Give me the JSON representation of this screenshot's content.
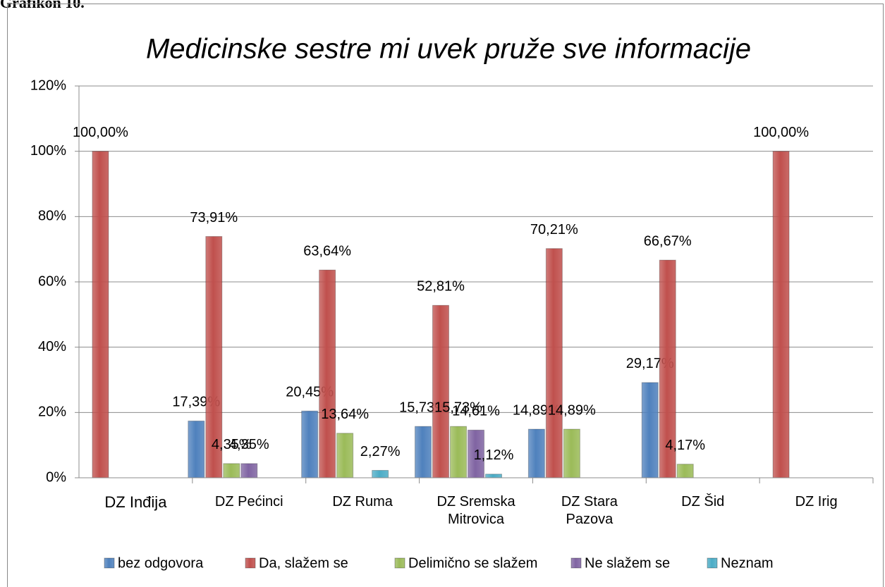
{
  "caption": "Grafikon 10.",
  "chart_data": {
    "type": "bar",
    "title": "Medicinske sestre mi uvek pruže sve informacije",
    "categories": [
      "DZ Inđija",
      "DZ Pećinci",
      "DZ Ruma",
      "DZ Sremska Mitrovica",
      "DZ Stara Pazova",
      "DZ Šid",
      "DZ Irig"
    ],
    "series": [
      {
        "name": "bez odgovora",
        "color": "#4f81bd",
        "values": [
          null,
          17.39,
          20.45,
          15.73,
          14.89,
          29.17,
          null
        ],
        "value_labels": [
          null,
          "17,39%",
          "20,45%",
          "15,73%",
          "14,89%",
          "29,17%",
          null
        ]
      },
      {
        "name": "Da, slažem se",
        "color": "#c0504d",
        "values": [
          100,
          73.91,
          63.64,
          52.81,
          70.21,
          66.67,
          100
        ],
        "value_labels": [
          "100,00%",
          "73,91%",
          "63,64%",
          "52,81%",
          "70,21%",
          "66,67%",
          "100,00%"
        ]
      },
      {
        "name": "Delimično se slažem",
        "color": "#9bbb59",
        "values": [
          null,
          4.35,
          13.64,
          15.73,
          14.89,
          4.17,
          null
        ],
        "value_labels": [
          null,
          "4,35%",
          "13,64%",
          "15,73%",
          "14,89%",
          "4,17%",
          null
        ]
      },
      {
        "name": "Ne slažem se",
        "color": "#8064a2",
        "values": [
          null,
          4.35,
          null,
          14.61,
          null,
          null,
          null
        ],
        "value_labels": [
          null,
          "4,35%",
          null,
          "14,61%",
          null,
          null,
          null
        ]
      },
      {
        "name": "Neznam",
        "color": "#4bacc6",
        "values": [
          null,
          null,
          2.27,
          1.12,
          null,
          null,
          null
        ],
        "value_labels": [
          null,
          null,
          "2,27%",
          "1,12%",
          null,
          null,
          null
        ]
      }
    ],
    "ylim": [
      0,
      120
    ],
    "yticks": [
      {
        "value": 0,
        "label": "0%"
      },
      {
        "value": 20,
        "label": "20%"
      },
      {
        "value": 40,
        "label": "40%"
      },
      {
        "value": 60,
        "label": "60%"
      },
      {
        "value": 80,
        "label": "80%"
      },
      {
        "value": 100,
        "label": "100%"
      },
      {
        "value": 120,
        "label": "120%"
      }
    ],
    "grid": true,
    "legend": "bottom"
  }
}
